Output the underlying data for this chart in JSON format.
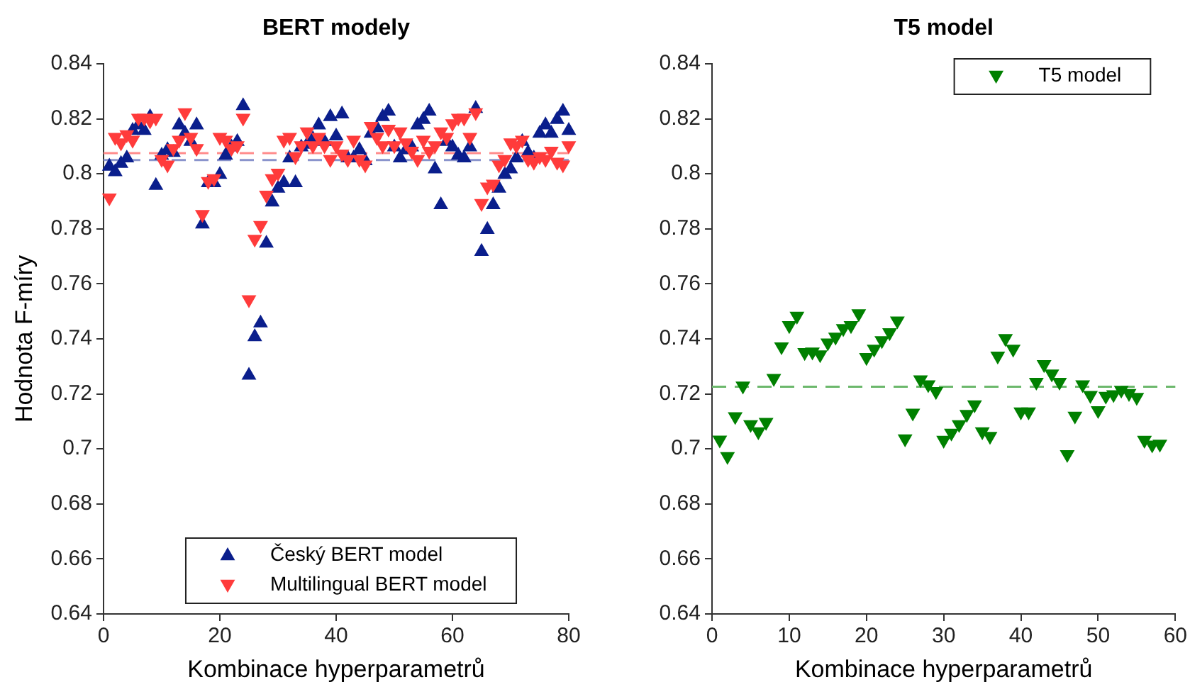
{
  "chart_data": [
    {
      "type": "scatter",
      "title": "BERT modely",
      "xlabel": "Kombinace hyperparametrů",
      "ylabel": "Hodnota F-míry",
      "xlim": [
        0,
        80
      ],
      "xticks": [
        0,
        20,
        40,
        60,
        80
      ],
      "ylim": [
        0.64,
        0.84
      ],
      "yticks": [
        0.64,
        0.66,
        0.68,
        0.7,
        0.72,
        0.74,
        0.76,
        0.78,
        0.8,
        0.82,
        0.84
      ],
      "grid": false,
      "legend": "bottom",
      "x": [
        1,
        2,
        3,
        4,
        5,
        6,
        7,
        8,
        9,
        10,
        11,
        12,
        13,
        14,
        15,
        16,
        17,
        18,
        19,
        20,
        21,
        22,
        23,
        24,
        25,
        26,
        27,
        28,
        29,
        30,
        31,
        32,
        33,
        34,
        35,
        36,
        37,
        38,
        39,
        40,
        41,
        42,
        43,
        44,
        45,
        46,
        47,
        48,
        49,
        50,
        51,
        52,
        53,
        54,
        55,
        56,
        57,
        58,
        59,
        60,
        61,
        62,
        63,
        64,
        65,
        66,
        67,
        68,
        69,
        70,
        71,
        72,
        73,
        74,
        75,
        76,
        77,
        78,
        79,
        80
      ],
      "series": [
        {
          "name": "Český BERT model",
          "color": "#0a1e8c",
          "marker": "triangle",
          "values": [
            0.803,
            0.801,
            0.804,
            0.806,
            0.816,
            0.818,
            0.816,
            0.821,
            0.796,
            0.807,
            0.809,
            0.808,
            0.818,
            0.815,
            0.812,
            0.818,
            0.782,
            0.797,
            0.797,
            0.8,
            0.807,
            0.81,
            0.812,
            0.825,
            0.727,
            0.741,
            0.746,
            0.775,
            0.79,
            0.795,
            0.797,
            0.806,
            0.797,
            0.81,
            0.811,
            0.813,
            0.818,
            0.812,
            0.821,
            0.814,
            0.822,
            0.806,
            0.806,
            0.809,
            0.805,
            0.815,
            0.817,
            0.821,
            0.823,
            0.81,
            0.806,
            0.809,
            0.81,
            0.818,
            0.82,
            0.823,
            0.802,
            0.789,
            0.812,
            0.81,
            0.807,
            0.806,
            0.81,
            0.824,
            0.772,
            0.78,
            0.789,
            0.795,
            0.8,
            0.802,
            0.806,
            0.812,
            0.808,
            0.806,
            0.815,
            0.818,
            0.815,
            0.82,
            0.823,
            0.816
          ]
        },
        {
          "name": "Multilingual BERT model",
          "color": "#ff3b3b",
          "marker": "triangle_down",
          "values": [
            0.791,
            0.813,
            0.811,
            0.814,
            0.812,
            0.82,
            0.82,
            0.819,
            0.82,
            0.805,
            0.803,
            0.809,
            0.812,
            0.822,
            0.813,
            0.809,
            0.785,
            0.797,
            0.798,
            0.813,
            0.812,
            0.809,
            0.81,
            0.82,
            0.754,
            0.776,
            0.781,
            0.792,
            0.798,
            0.8,
            0.812,
            0.813,
            0.806,
            0.81,
            0.815,
            0.81,
            0.813,
            0.81,
            0.805,
            0.81,
            0.807,
            0.805,
            0.812,
            0.805,
            0.803,
            0.817,
            0.813,
            0.81,
            0.816,
            0.81,
            0.815,
            0.811,
            0.808,
            0.805,
            0.812,
            0.808,
            0.81,
            0.815,
            0.813,
            0.818,
            0.82,
            0.82,
            0.813,
            0.822,
            0.789,
            0.795,
            0.796,
            0.803,
            0.805,
            0.811,
            0.81,
            0.812,
            0.805,
            0.804,
            0.806,
            0.805,
            0.808,
            0.804,
            0.803,
            0.81
          ]
        }
      ],
      "ref_lines": [
        {
          "axis": "y",
          "value": 0.805,
          "color": "#8a94cc",
          "line_style": "dashed"
        },
        {
          "axis": "y",
          "value": 0.8075,
          "color": "#ff8c8c",
          "line_style": "dashed"
        }
      ]
    },
    {
      "type": "scatter",
      "title": "T5 model",
      "xlabel": "Kombinace hyperparametrů",
      "xlim": [
        0,
        60
      ],
      "xticks": [
        0,
        10,
        20,
        30,
        40,
        50,
        60
      ],
      "ylim": [
        0.64,
        0.84
      ],
      "yticks": [
        0.64,
        0.66,
        0.68,
        0.7,
        0.72,
        0.74,
        0.76,
        0.78,
        0.8,
        0.82,
        0.84
      ],
      "grid": false,
      "legend": "top right",
      "x": [
        1,
        2,
        3,
        4,
        5,
        6,
        7,
        8,
        9,
        10,
        11,
        12,
        13,
        14,
        15,
        16,
        17,
        18,
        19,
        20,
        21,
        22,
        23,
        24,
        25,
        26,
        27,
        28,
        29,
        30,
        31,
        32,
        33,
        34,
        35,
        36,
        37,
        38,
        39,
        40,
        41,
        42,
        43,
        44,
        45,
        46,
        47,
        48,
        49,
        50,
        51,
        52,
        53,
        54,
        55,
        56,
        57,
        58
      ],
      "series": [
        {
          "name": "T5 model",
          "color": "#008000",
          "marker": "triangle_down",
          "values": [
            0.703,
            0.697,
            0.7115,
            0.7226,
            0.7086,
            0.706,
            0.7094,
            0.7254,
            0.7369,
            0.7446,
            0.748,
            0.7348,
            0.735,
            0.734,
            0.7383,
            0.7404,
            0.7435,
            0.7446,
            0.7489,
            0.733,
            0.736,
            0.7391,
            0.742,
            0.7463,
            0.7034,
            0.7128,
            0.7249,
            0.7231,
            0.7206,
            0.7029,
            0.7055,
            0.7086,
            0.7123,
            0.7158,
            0.706,
            0.7043,
            0.7335,
            0.7399,
            0.736,
            0.7132,
            0.7132,
            0.724,
            0.7304,
            0.727,
            0.724,
            0.6977,
            0.7117,
            0.7231,
            0.7192,
            0.7137,
            0.7189,
            0.7195,
            0.7211,
            0.7199,
            0.7185,
            0.7029,
            0.7012,
            0.7015
          ]
        }
      ],
      "ref_lines": [
        {
          "axis": "y",
          "value": 0.7226,
          "color": "#6cb86c",
          "line_style": "dashed"
        }
      ]
    }
  ]
}
